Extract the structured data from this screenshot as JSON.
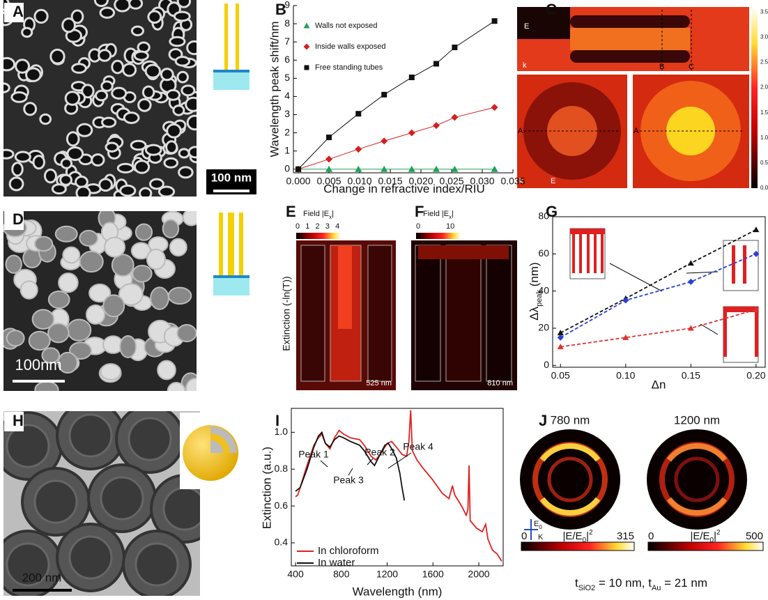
{
  "figure": {
    "panels": [
      "A",
      "B",
      "C",
      "D",
      "E",
      "F",
      "G",
      "H",
      "I",
      "J"
    ],
    "scale_bars": {
      "A": "100 nm",
      "D": "100nm",
      "H": "200 nm"
    },
    "C": {
      "labels": [
        "E",
        "k",
        "B",
        "C",
        "A",
        "A",
        "k",
        "E"
      ],
      "colorbar": {
        "lim": [
          0,
          3.6
        ],
        "ticks": [
          {
            "value": 0,
            "label": "0.0"
          },
          0.5,
          {
            "value": 1,
            "label": "1.0"
          },
          1.5,
          {
            "value": 2,
            "label": "2.0"
          },
          2.5,
          {
            "value": 3,
            "label": "3.0"
          },
          3.5
        ]
      }
    },
    "E": {
      "field_label": [
        "Field |E",
        "x",
        "|"
      ],
      "colorbar": {
        "lim": [
          0,
          4.2
        ],
        "ticks": [
          0,
          1,
          2,
          3,
          4
        ]
      },
      "ylabel": "Extinction (-ln(T))",
      "wavelength": "525 nm"
    },
    "F": {
      "field_label": [
        "Field |E",
        "x",
        "|"
      ],
      "colorbar": {
        "lim": [
          0,
          13
        ],
        "ticks": [
          0,
          10
        ]
      },
      "wavelength": "810 nm"
    },
    "J": {
      "wavelengths": [
        "780 nm",
        "1200 nm"
      ],
      "field_label": [
        "|E/E",
        "0",
        "|",
        "2"
      ],
      "colorbars": [
        {
          "lim": [
            0,
            315
          ],
          "ticks": [
            0,
            315
          ]
        },
        {
          "lim": [
            0,
            500
          ],
          "ticks": [
            0,
            500
          ]
        }
      ],
      "axes": [
        "E",
        "0",
        "K"
      ],
      "caption": [
        "t",
        "SiO2",
        " = 10 nm, t",
        "Au",
        " = 21 nm"
      ]
    }
  },
  "chart_data": [
    {
      "type": "scatter",
      "xlabel": "Change in refractive index/RIU",
      "ylabel": "Wavelength peak shift/nm",
      "x": [
        0,
        0.005,
        0.0098,
        0.014,
        0.0185,
        0.0225,
        0.0255,
        0.032
      ],
      "series": [
        {
          "name": "Walls not exposed",
          "color": "#22a05a",
          "marker": "triangle",
          "values": [
            0,
            0,
            0,
            0,
            0,
            0,
            0,
            0
          ]
        },
        {
          "name": "Inside walls exposed",
          "color": "#d42020",
          "marker": "diamond",
          "values": [
            0,
            0.55,
            1.1,
            1.55,
            2.0,
            2.4,
            2.85,
            3.4
          ]
        },
        {
          "name": "Free standing tubes",
          "color": "#111111",
          "marker": "square",
          "values": [
            0,
            1.75,
            3.05,
            4.1,
            5.05,
            5.8,
            6.7,
            8.15
          ]
        }
      ],
      "xlim": [
        -0.0008,
        0.035
      ],
      "ylim": [
        -0.2,
        9
      ],
      "xticks": [
        {
          "value": 0,
          "label": "0.000"
        },
        0.005,
        {
          "value": 0.01,
          "label": "0.010"
        },
        0.015,
        {
          "value": 0.02,
          "label": "0.020"
        },
        0.025,
        {
          "value": 0.03,
          "label": "0.030"
        },
        0.035
      ],
      "yticks": [
        0,
        1,
        2,
        3,
        4,
        5,
        6,
        7,
        8,
        9
      ],
      "legend": "upper left"
    },
    {
      "type": "line",
      "xlabel": "Δn",
      "ylabel": [
        "Δλ",
        "peak",
        " (nm)"
      ],
      "x": [
        0.05,
        0.1,
        0.15,
        0.2
      ],
      "series": [
        {
          "color": "#111111",
          "marker": "triangle",
          "dashed": true,
          "values": [
            17.5,
            36,
            55,
            73
          ]
        },
        {
          "color": "#2a3fd8",
          "marker": "diamond",
          "dashed": true,
          "values": [
            15,
            35,
            45,
            60
          ]
        },
        {
          "color": "#e03030",
          "marker": "triangle",
          "dashed": true,
          "values": [
            10,
            15,
            20,
            30
          ]
        }
      ],
      "xlim": [
        0.044,
        0.207
      ],
      "ylim": [
        -1,
        80
      ],
      "xticks": [
        0.05,
        {
          "value": 0.1,
          "label": "0.10"
        },
        0.15,
        {
          "value": 0.2,
          "label": "0.20"
        }
      ],
      "yticks": [
        0,
        20,
        40,
        60,
        80
      ]
    },
    {
      "type": "line",
      "xlabel": "Wavelength (nm)",
      "ylabel": "Extinction (a.u.)",
      "series": [
        {
          "name": "In chloroform",
          "color": "#e02020",
          "x": [
            400,
            420,
            450,
            500,
            560,
            600,
            630,
            660,
            700,
            740,
            780,
            820,
            880,
            960,
            1000,
            1060,
            1100,
            1140,
            1200,
            1240,
            1280,
            1330,
            1370,
            1390,
            1405,
            1420,
            1460,
            1520,
            1600,
            1680,
            1740,
            1770,
            1790,
            1850,
            1890,
            1905,
            1915,
            1925,
            1980,
            2030,
            2060,
            2080,
            2120,
            2160,
            2200
          ],
          "values": [
            0.65,
            0.66,
            0.72,
            0.82,
            0.93,
            0.97,
            0.99,
            0.94,
            0.91,
            0.97,
            1.01,
            0.99,
            0.97,
            0.96,
            0.93,
            0.87,
            0.85,
            0.88,
            0.94,
            0.95,
            0.92,
            0.88,
            0.87,
            0.95,
            1.12,
            0.9,
            0.85,
            0.8,
            0.74,
            0.67,
            0.64,
            0.71,
            0.66,
            0.6,
            0.55,
            0.58,
            0.82,
            0.52,
            0.48,
            0.46,
            0.5,
            0.42,
            0.36,
            0.34,
            0.3
          ]
        },
        {
          "name": "In water",
          "color": "#111111",
          "x": [
            400,
            440,
            500,
            560,
            600,
            630,
            660,
            700,
            740,
            780,
            820,
            880,
            960,
            1000,
            1060,
            1090,
            1130,
            1180,
            1210,
            1240,
            1280,
            1310,
            1330,
            1350
          ],
          "values": [
            0.68,
            0.7,
            0.8,
            0.92,
            0.98,
            1.0,
            0.94,
            0.92,
            0.96,
            0.98,
            0.97,
            0.95,
            0.93,
            0.9,
            0.84,
            0.82,
            0.87,
            0.93,
            0.94,
            0.91,
            0.86,
            0.78,
            0.7,
            0.63
          ]
        }
      ],
      "annotations": [
        "Peak 1",
        "Peak 2",
        "Peak 3",
        "Peak 4"
      ],
      "xlim": [
        363,
        2213
      ],
      "ylim": [
        0.275,
        1.13
      ],
      "xticks": [
        400,
        800,
        1200,
        1600,
        2000
      ],
      "yticks": [
        0.4,
        0.6,
        0.8,
        {
          "value": 1,
          "label": "1.0"
        }
      ],
      "legend": "lower left"
    }
  ]
}
